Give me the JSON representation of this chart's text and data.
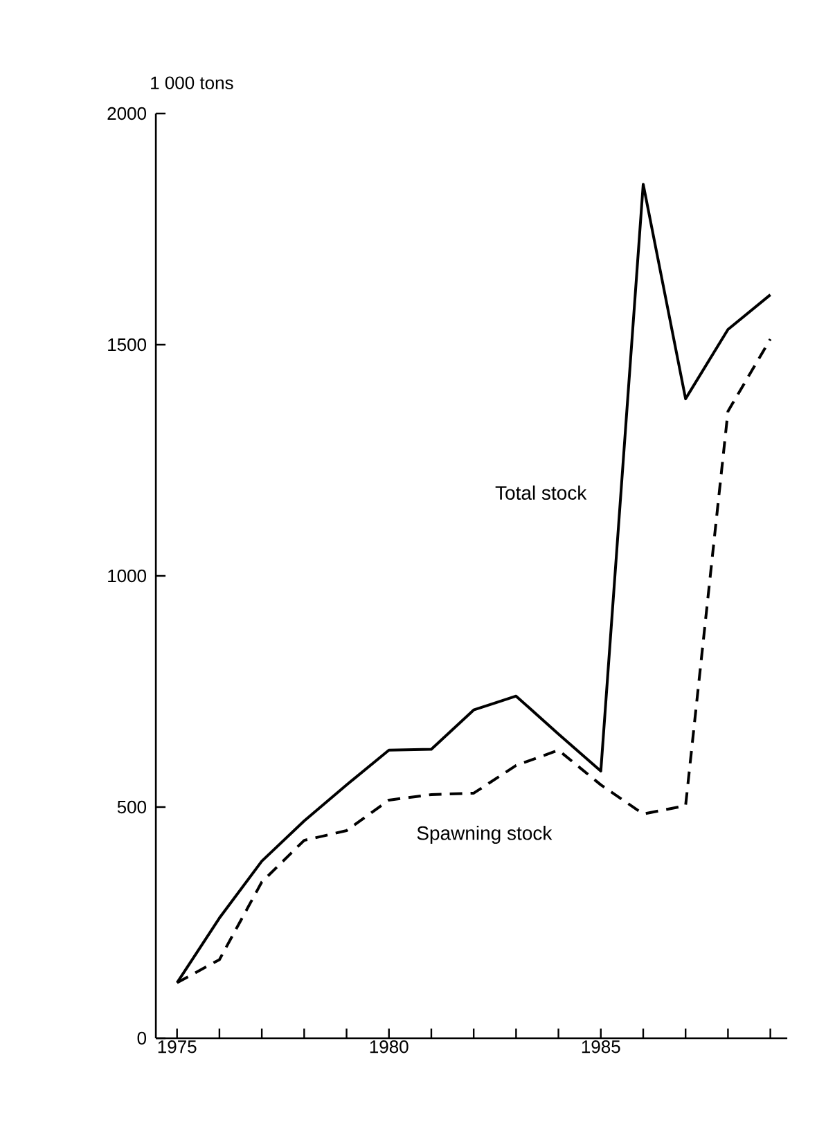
{
  "chart_data": {
    "type": "line",
    "ylabel": "1 000 tons",
    "x": [
      1975,
      1976,
      1977,
      1978,
      1979,
      1980,
      1981,
      1982,
      1983,
      1984,
      1985,
      1986,
      1987,
      1988,
      1989
    ],
    "series": [
      {
        "name": "Total stock",
        "color": "#000000",
        "line_style": "solid",
        "values": [
          120,
          260,
          383,
          470,
          548,
          623,
          625,
          710,
          740,
          658,
          578,
          1847,
          1383,
          1533,
          1608
        ]
      },
      {
        "name": "Spawning stock",
        "color": "#000000",
        "line_style": "dashed",
        "values": [
          120,
          170,
          338,
          428,
          449,
          515,
          527,
          530,
          590,
          623,
          548,
          485,
          503,
          1356,
          1512
        ]
      }
    ],
    "xlim": [
      1974.5,
      1989.4
    ],
    "ylim": [
      0,
      2000
    ],
    "xticks": [
      1975,
      {
        "value": 1976,
        "label": null
      },
      {
        "value": 1977,
        "label": null
      },
      {
        "value": 1978,
        "label": null
      },
      {
        "value": 1979,
        "label": null
      },
      1980,
      {
        "value": 1981,
        "label": null
      },
      {
        "value": 1982,
        "label": null
      },
      {
        "value": 1983,
        "label": null
      },
      {
        "value": 1984,
        "label": null
      },
      1985,
      {
        "value": 1986,
        "label": null
      },
      {
        "value": 1987,
        "label": null
      },
      {
        "value": 1988,
        "label": null
      },
      {
        "value": 1989,
        "label": null
      }
    ],
    "yticks": [
      0,
      500,
      1000,
      1500,
      2000
    ],
    "grid": false,
    "marker": "none"
  }
}
